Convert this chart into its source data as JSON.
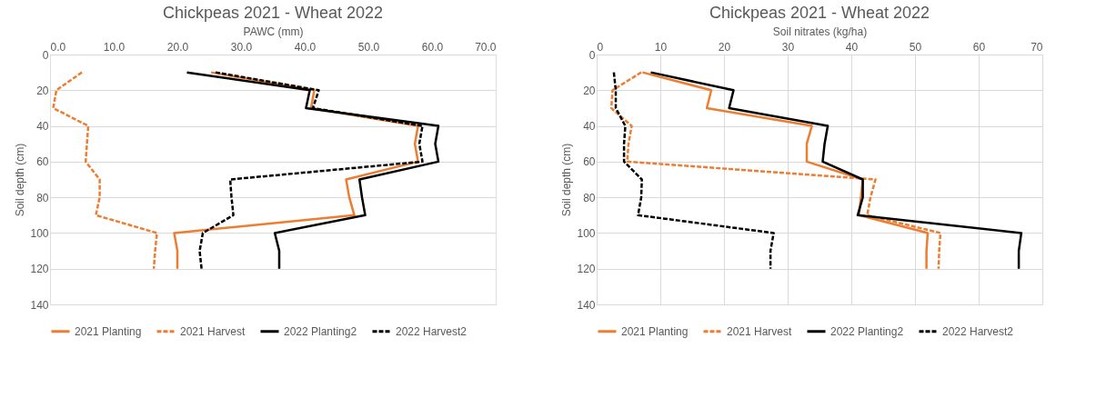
{
  "chart_data": [
    {
      "type": "line",
      "title": "Chickpeas 2021 - Wheat 2022",
      "xlabel": "PAWC (mm)",
      "ylabel": "Soil depth (cm)",
      "xlim": [
        0,
        70
      ],
      "xticks": [
        {
          "value": 0,
          "label": "0.0"
        },
        {
          "value": 10,
          "label": "10.0"
        },
        {
          "value": 20,
          "label": "20.0"
        },
        {
          "value": 30,
          "label": "30.0"
        },
        {
          "value": 40,
          "label": "40.0"
        },
        {
          "value": 50,
          "label": "50.0"
        },
        {
          "value": 60,
          "label": "60.0"
        },
        {
          "value": 70,
          "label": "70.0"
        }
      ],
      "ylim": [
        140,
        0
      ],
      "yticks": [
        0,
        20,
        40,
        60,
        80,
        100,
        120,
        140
      ],
      "grid": "y",
      "legend": "bottom",
      "marker": "none",
      "series": [
        {
          "name": "2021 Planting",
          "color": "#ed7d31",
          "line_style": "solid",
          "x": [
            25.3,
            41.5,
            41.0,
            57.8,
            57.3,
            57.8,
            46.5,
            47.0,
            47.8,
            19.5,
            20.0,
            20.0
          ],
          "values": [
            10,
            20,
            30,
            40,
            50,
            60,
            70,
            80,
            90,
            100,
            110,
            120
          ]
        },
        {
          "name": "2021 Harvest",
          "color": "#ed7d31",
          "line_style": "dashed",
          "x": [
            5.0,
            1.0,
            0.5,
            6.0,
            5.8,
            5.6,
            7.8,
            7.8,
            7.2,
            16.8,
            16.5,
            16.3
          ],
          "values": [
            10,
            20,
            30,
            40,
            50,
            60,
            70,
            80,
            90,
            100,
            110,
            120
          ]
        },
        {
          "name": "2022 Planting2",
          "color": "#000000",
          "line_style": "solid",
          "x": [
            21.5,
            40.8,
            40.2,
            61.0,
            60.5,
            61.0,
            48.6,
            49.0,
            49.5,
            35.3,
            36.0,
            36.0
          ],
          "values": [
            10,
            20,
            30,
            40,
            50,
            60,
            70,
            80,
            90,
            100,
            110,
            120
          ]
        },
        {
          "name": "2022 Harvest2",
          "color": "#000000",
          "line_style": "dashed",
          "x": [
            26.0,
            42.2,
            41.3,
            58.5,
            58.0,
            58.5,
            28.3,
            28.5,
            28.8,
            24.0,
            23.5,
            23.8
          ],
          "values": [
            10,
            20,
            30,
            40,
            50,
            60,
            70,
            80,
            90,
            100,
            110,
            120
          ]
        }
      ]
    },
    {
      "type": "line",
      "title": "Chickpeas 2021 - Wheat 2022",
      "xlabel": "Soil nitrates (kg/ha)",
      "ylabel": "Soil depth (cm)",
      "xlim": [
        0,
        70
      ],
      "xticks": [
        0,
        10,
        20,
        30,
        40,
        50,
        60,
        70
      ],
      "ylim": [
        140,
        0
      ],
      "yticks": [
        0,
        20,
        40,
        60,
        80,
        100,
        120,
        140
      ],
      "grid": true,
      "legend": "bottom",
      "marker": "none",
      "series": [
        {
          "name": "2021 Planting",
          "color": "#ed7d31",
          "line_style": "solid",
          "x": [
            7.2,
            18.0,
            17.3,
            33.8,
            33.0,
            33.0,
            41.8,
            41.5,
            41.2,
            52.0,
            51.8,
            51.8
          ],
          "values": [
            10,
            20,
            30,
            40,
            50,
            60,
            70,
            80,
            90,
            100,
            110,
            120
          ]
        },
        {
          "name": "2021 Harvest",
          "color": "#ed7d31",
          "line_style": "dashed",
          "x": [
            7.0,
            2.5,
            2.3,
            5.5,
            5.0,
            4.8,
            43.8,
            43.0,
            42.5,
            54.0,
            53.8,
            53.7
          ],
          "values": [
            10,
            20,
            30,
            40,
            50,
            60,
            70,
            80,
            90,
            100,
            110,
            120
          ]
        },
        {
          "name": "2022 Planting2",
          "color": "#000000",
          "line_style": "solid",
          "x": [
            8.5,
            21.5,
            20.8,
            36.3,
            35.8,
            35.5,
            41.8,
            41.8,
            41.0,
            66.7,
            66.3,
            66.3
          ],
          "values": [
            10,
            20,
            30,
            40,
            50,
            60,
            70,
            80,
            90,
            100,
            110,
            120
          ]
        },
        {
          "name": "2022 Harvest2",
          "color": "#000000",
          "line_style": "dashed",
          "x": [
            2.7,
            3.0,
            3.0,
            4.5,
            4.3,
            4.3,
            7.1,
            7.0,
            6.5,
            27.8,
            27.3,
            27.3
          ],
          "values": [
            10,
            20,
            30,
            40,
            50,
            60,
            70,
            80,
            90,
            100,
            110,
            120
          ]
        }
      ]
    }
  ]
}
